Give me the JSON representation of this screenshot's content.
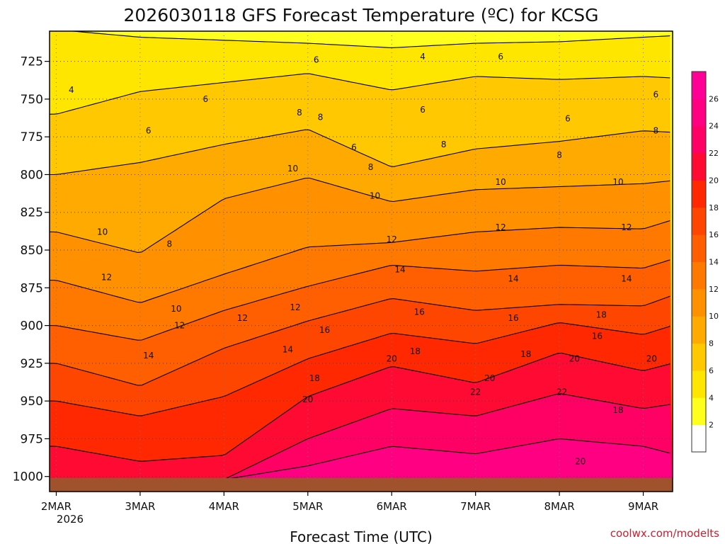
{
  "chart_data": {
    "type": "heatmap",
    "title": "2026030118 GFS Forecast Temperature (ºC) for KCSG",
    "xlabel": "Forecast Time (UTC)",
    "ylabel": "",
    "credit": "coolwx.com/modelts",
    "x_ticks": [
      "2MAR",
      "3MAR",
      "4MAR",
      "5MAR",
      "6MAR",
      "7MAR",
      "8MAR",
      "9MAR"
    ],
    "x_sublabel": "2026",
    "y_ticks": [
      725,
      750,
      775,
      800,
      825,
      850,
      875,
      900,
      925,
      950,
      975,
      1000
    ],
    "y_range_hpa": [
      705,
      1010
    ],
    "x_range_days": [
      -0.08,
      7.35
    ],
    "ground_hpa": 1001,
    "colorbar": {
      "levels": [
        2,
        4,
        6,
        8,
        10,
        12,
        14,
        16,
        18,
        20,
        22,
        24,
        26
      ],
      "colors": [
        "#ffffff",
        "#ffff1e",
        "#ffe600",
        "#ffc800",
        "#ffaa00",
        "#ff9100",
        "#ff7800",
        "#ff5f00",
        "#ff4600",
        "#ff2800",
        "#ff0a32",
        "#ff0064",
        "#ff0082",
        "#ff0096"
      ]
    },
    "series": [
      {
        "name": "4C isotherm",
        "level": 4,
        "points": [
          [
            0.0,
            704
          ],
          [
            1.0,
            709
          ],
          [
            2.0,
            711
          ],
          [
            3.0,
            713
          ],
          [
            4.0,
            716
          ],
          [
            5.0,
            713
          ],
          [
            6.0,
            712
          ],
          [
            7.0,
            709
          ],
          [
            7.35,
            708
          ]
        ]
      },
      {
        "name": "6C isotherm",
        "level": 6,
        "points": [
          [
            0.0,
            760
          ],
          [
            1.0,
            745
          ],
          [
            2.0,
            739
          ],
          [
            3.0,
            733
          ],
          [
            4.0,
            744
          ],
          [
            5.0,
            735
          ],
          [
            6.0,
            737
          ],
          [
            7.0,
            735
          ],
          [
            7.35,
            736
          ]
        ]
      },
      {
        "name": "8C isotherm",
        "level": 8,
        "points": [
          [
            0.0,
            800
          ],
          [
            1.0,
            792
          ],
          [
            2.0,
            780
          ],
          [
            3.0,
            770
          ],
          [
            4.0,
            795
          ],
          [
            5.0,
            783
          ],
          [
            6.0,
            778
          ],
          [
            7.0,
            771
          ],
          [
            7.35,
            772
          ]
        ]
      },
      {
        "name": "10C isotherm",
        "level": 10,
        "points": [
          [
            0.0,
            838
          ],
          [
            1.0,
            852
          ],
          [
            2.0,
            816
          ],
          [
            3.0,
            802
          ],
          [
            4.0,
            818
          ],
          [
            5.0,
            810
          ],
          [
            6.0,
            808
          ],
          [
            7.0,
            806
          ],
          [
            7.35,
            804
          ]
        ]
      },
      {
        "name": "12C isotherm",
        "level": 12,
        "points": [
          [
            0.0,
            870
          ],
          [
            1.0,
            885
          ],
          [
            2.0,
            866
          ],
          [
            3.0,
            848
          ],
          [
            4.0,
            845
          ],
          [
            5.0,
            838
          ],
          [
            6.0,
            835
          ],
          [
            7.0,
            836
          ],
          [
            7.35,
            830
          ]
        ]
      },
      {
        "name": "14C isotherm",
        "level": 14,
        "points": [
          [
            0.0,
            900
          ],
          [
            1.0,
            910
          ],
          [
            2.0,
            890
          ],
          [
            3.0,
            874
          ],
          [
            4.0,
            860
          ],
          [
            5.0,
            864
          ],
          [
            6.0,
            860
          ],
          [
            7.0,
            862
          ],
          [
            7.35,
            856
          ]
        ]
      },
      {
        "name": "16C isotherm",
        "level": 16,
        "points": [
          [
            0.0,
            925
          ],
          [
            1.0,
            940
          ],
          [
            2.0,
            915
          ],
          [
            3.0,
            897
          ],
          [
            4.0,
            882
          ],
          [
            5.0,
            890
          ],
          [
            6.0,
            886
          ],
          [
            7.0,
            887
          ],
          [
            7.35,
            880
          ]
        ]
      },
      {
        "name": "18C isotherm",
        "level": 18,
        "points": [
          [
            0.0,
            950
          ],
          [
            1.0,
            960
          ],
          [
            2.0,
            947
          ],
          [
            3.0,
            922
          ],
          [
            4.0,
            905
          ],
          [
            5.0,
            912
          ],
          [
            6.0,
            898
          ],
          [
            7.0,
            906
          ],
          [
            7.35,
            900
          ]
        ]
      },
      {
        "name": "20C isotherm",
        "level": 20,
        "points": [
          [
            0.0,
            980
          ],
          [
            1.0,
            990
          ],
          [
            2.0,
            986
          ],
          [
            3.0,
            947
          ],
          [
            4.0,
            927
          ],
          [
            5.0,
            938
          ],
          [
            6.0,
            918
          ],
          [
            7.0,
            930
          ],
          [
            7.35,
            925
          ]
        ]
      },
      {
        "name": "22C isotherm",
        "level": 22,
        "points": [
          [
            0.0,
            1002
          ],
          [
            1.0,
            1002
          ],
          [
            2.0,
            1002
          ],
          [
            3.0,
            975
          ],
          [
            4.0,
            955
          ],
          [
            5.0,
            960
          ],
          [
            6.0,
            945
          ],
          [
            7.0,
            955
          ],
          [
            7.35,
            952
          ]
        ]
      },
      {
        "name": "24C isotherm",
        "level": 24,
        "points": [
          [
            0.0,
            1002
          ],
          [
            1.0,
            1002
          ],
          [
            2.0,
            1002
          ],
          [
            3.0,
            993
          ],
          [
            4.0,
            980
          ],
          [
            5.0,
            985
          ],
          [
            6.0,
            975
          ],
          [
            7.0,
            980
          ],
          [
            7.35,
            985
          ]
        ]
      }
    ],
    "contour_labels": [
      {
        "text": "4",
        "x": 0.18,
        "p": 744
      },
      {
        "text": "4",
        "x": 4.37,
        "p": 722
      },
      {
        "text": "6",
        "x": 1.1,
        "p": 771
      },
      {
        "text": "6",
        "x": 1.78,
        "p": 750
      },
      {
        "text": "6",
        "x": 3.1,
        "p": 724
      },
      {
        "text": "6",
        "x": 3.55,
        "p": 782
      },
      {
        "text": "6",
        "x": 4.37,
        "p": 757
      },
      {
        "text": "6",
        "x": 5.3,
        "p": 722
      },
      {
        "text": "6",
        "x": 6.1,
        "p": 763
      },
      {
        "text": "6",
        "x": 7.15,
        "p": 747
      },
      {
        "text": "8",
        "x": 1.35,
        "p": 846
      },
      {
        "text": "8",
        "x": 2.9,
        "p": 759
      },
      {
        "text": "8",
        "x": 3.15,
        "p": 762
      },
      {
        "text": "8",
        "x": 3.75,
        "p": 795
      },
      {
        "text": "8",
        "x": 4.62,
        "p": 780
      },
      {
        "text": "8",
        "x": 6.0,
        "p": 787
      },
      {
        "text": "8",
        "x": 7.15,
        "p": 771
      },
      {
        "text": "10",
        "x": 0.55,
        "p": 838
      },
      {
        "text": "10",
        "x": 1.43,
        "p": 889
      },
      {
        "text": "10",
        "x": 2.82,
        "p": 796
      },
      {
        "text": "10",
        "x": 3.8,
        "p": 814
      },
      {
        "text": "10",
        "x": 5.3,
        "p": 805
      },
      {
        "text": "10",
        "x": 6.7,
        "p": 805
      },
      {
        "text": "12",
        "x": 0.6,
        "p": 868
      },
      {
        "text": "12",
        "x": 1.47,
        "p": 900
      },
      {
        "text": "12",
        "x": 2.22,
        "p": 895
      },
      {
        "text": "12",
        "x": 2.85,
        "p": 888
      },
      {
        "text": "12",
        "x": 4.0,
        "p": 843
      },
      {
        "text": "12",
        "x": 5.3,
        "p": 835
      },
      {
        "text": "12",
        "x": 6.8,
        "p": 835
      },
      {
        "text": "14",
        "x": 1.1,
        "p": 920
      },
      {
        "text": "14",
        "x": 2.76,
        "p": 916
      },
      {
        "text": "14",
        "x": 4.1,
        "p": 863
      },
      {
        "text": "14",
        "x": 5.45,
        "p": 869
      },
      {
        "text": "14",
        "x": 6.8,
        "p": 869
      },
      {
        "text": "16",
        "x": 3.2,
        "p": 903
      },
      {
        "text": "16",
        "x": 4.33,
        "p": 891
      },
      {
        "text": "16",
        "x": 5.45,
        "p": 895
      },
      {
        "text": "16",
        "x": 6.45,
        "p": 907
      },
      {
        "text": "18",
        "x": 3.08,
        "p": 935
      },
      {
        "text": "18",
        "x": 4.28,
        "p": 917
      },
      {
        "text": "18",
        "x": 5.6,
        "p": 919
      },
      {
        "text": "18",
        "x": 6.5,
        "p": 893
      },
      {
        "text": "18",
        "x": 6.7,
        "p": 956
      },
      {
        "text": "20",
        "x": 3.0,
        "p": 949
      },
      {
        "text": "20",
        "x": 4.0,
        "p": 922
      },
      {
        "text": "20",
        "x": 5.17,
        "p": 935
      },
      {
        "text": "20",
        "x": 6.18,
        "p": 922
      },
      {
        "text": "20",
        "x": 7.1,
        "p": 922
      },
      {
        "text": "20",
        "x": 6.25,
        "p": 990
      },
      {
        "text": "22",
        "x": 5.0,
        "p": 944
      },
      {
        "text": "22",
        "x": 6.03,
        "p": 944
      }
    ]
  }
}
